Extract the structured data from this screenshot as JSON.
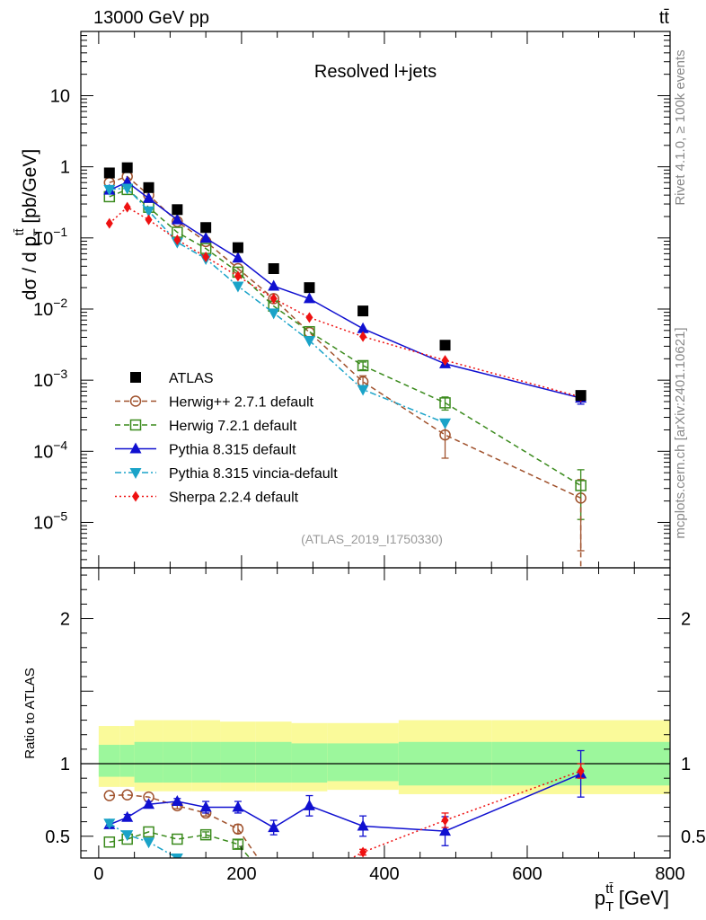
{
  "header": {
    "left": "13000 GeV pp",
    "right": "tt̄"
  },
  "side_labels": {
    "rivet": "Rivet 4.1.0, ≥ 100k events",
    "mcplots": "mcplots.cern.ch [arXiv:2401.10621]"
  },
  "chart_data": [
    {
      "panel": "main",
      "type": "line",
      "title": "Resolved l+jets",
      "analysis_id": "(ATLAS_2019_I1750330)",
      "ylabel_parts": [
        "dσ / d p",
        "T",
        "tt̄",
        " [pb/GeV]"
      ],
      "yscale": "log",
      "ylim": [
        2.3e-06,
        80
      ],
      "xlim": [
        -25,
        800
      ],
      "ytick_labels": [
        {
          "value": 10,
          "mant": "10",
          "exp": ""
        },
        {
          "value": 1,
          "mant": "1",
          "exp": ""
        },
        {
          "value": 0.1,
          "mant": "10",
          "exp": "−1"
        },
        {
          "value": 0.01,
          "mant": "10",
          "exp": "−2"
        },
        {
          "value": 0.001,
          "mant": "10",
          "exp": "−3"
        },
        {
          "value": 0.0001,
          "mant": "10",
          "exp": "−4"
        },
        {
          "value": 1e-05,
          "mant": "10",
          "exp": "−5"
        }
      ],
      "series": [
        {
          "name": "ATLAS",
          "style": "data",
          "color": "#000000",
          "x": [
            15,
            40,
            70,
            110,
            150,
            195,
            245,
            295,
            370,
            485,
            675
          ],
          "values": [
            0.82,
            0.97,
            0.51,
            0.25,
            0.14,
            0.073,
            0.037,
            0.02,
            0.0094,
            0.0031,
            0.00061
          ]
        },
        {
          "name": "Herwig++ 2.7.1 default",
          "style": "circle",
          "color": "#a0522d",
          "dash": "6,4",
          "x": [
            15,
            40,
            70,
            110,
            150,
            195,
            245,
            295,
            370,
            485,
            675
          ],
          "values": [
            0.6,
            0.73,
            0.4,
            0.17,
            0.089,
            0.037,
            0.014,
            0.0047,
            0.00095,
            0.00017,
            2.2e-05
          ],
          "errors": [
            0,
            0,
            0,
            0,
            0,
            0,
            0,
            0,
            0.0002,
            9e-05,
            1.8e-05
          ]
        },
        {
          "name": "Herwig 7.2.1 default",
          "style": "square",
          "color": "#3a8a1c",
          "dash": "6,4",
          "x": [
            15,
            40,
            70,
            110,
            150,
            195,
            245,
            295,
            370,
            485,
            675
          ],
          "values": [
            0.38,
            0.48,
            0.27,
            0.12,
            0.071,
            0.033,
            0.011,
            0.0048,
            0.0016,
            0.00048,
            3.3e-05
          ],
          "errors": [
            0,
            0,
            0,
            0,
            0,
            0,
            0,
            0,
            0.0002,
            0.0001,
            2.2e-05
          ]
        },
        {
          "name": "Pythia 8.315 default",
          "style": "triangle-up",
          "color": "#1010d0",
          "dash": "",
          "x": [
            15,
            40,
            70,
            110,
            150,
            195,
            245,
            295,
            370,
            485,
            675
          ],
          "values": [
            0.47,
            0.61,
            0.36,
            0.18,
            0.099,
            0.052,
            0.021,
            0.014,
            0.0053,
            0.0017,
            0.00056
          ],
          "errors": [
            0,
            0,
            0,
            0,
            0,
            0,
            0,
            0,
            0,
            0,
            0.0001
          ]
        },
        {
          "name": "Pythia 8.315 vincia-default",
          "style": "triangle-down",
          "color": "#1aa3c8",
          "dash": "7,3,2,3",
          "x": [
            15,
            40,
            70,
            110,
            150,
            195,
            245,
            295,
            370,
            485
          ],
          "values": [
            0.48,
            0.5,
            0.24,
            0.087,
            0.051,
            0.021,
            0.0088,
            0.0036,
            0.00074,
            0.00025
          ],
          "errors": [
            0,
            0,
            0,
            0,
            0,
            0,
            0,
            0,
            0,
            0
          ]
        },
        {
          "name": "Sherpa 2.2.4 default",
          "style": "diamond",
          "color": "#ee1111",
          "dash": "2,3",
          "x": [
            15,
            40,
            70,
            110,
            150,
            195,
            245,
            295,
            370,
            485,
            675
          ],
          "values": [
            0.16,
            0.27,
            0.18,
            0.094,
            0.054,
            0.029,
            0.014,
            0.0076,
            0.0041,
            0.0019,
            0.00058
          ],
          "errors": [
            0,
            0,
            0,
            0,
            0,
            0,
            0,
            0,
            0,
            0,
            0
          ]
        }
      ]
    },
    {
      "panel": "ratio",
      "type": "line",
      "ylabel": "Ratio to ATLAS",
      "xlabel_parts": [
        "p",
        "T",
        "tt̄",
        " [GeV]"
      ],
      "xlim": [
        -25,
        800
      ],
      "ylim": [
        0.35,
        2.35
      ],
      "xtick_labels": [
        "0",
        "200",
        "400",
        "600",
        "800"
      ],
      "ytick_labels": [
        "0.5",
        "1",
        "2"
      ],
      "bin_edges": [
        0,
        30,
        50,
        90,
        130,
        170,
        220,
        270,
        320,
        420,
        550,
        800
      ],
      "band_yellow": [
        [
          0.84,
          1.26
        ],
        [
          0.84,
          1.26
        ],
        [
          0.81,
          1.3
        ],
        [
          0.81,
          1.3
        ],
        [
          0.81,
          1.3
        ],
        [
          0.81,
          1.29
        ],
        [
          0.81,
          1.29
        ],
        [
          0.81,
          1.28
        ],
        [
          0.82,
          1.28
        ],
        [
          0.79,
          1.3
        ],
        [
          0.79,
          1.3
        ]
      ],
      "band_green": [
        [
          0.91,
          1.13
        ],
        [
          0.91,
          1.13
        ],
        [
          0.87,
          1.15
        ],
        [
          0.87,
          1.15
        ],
        [
          0.87,
          1.15
        ],
        [
          0.87,
          1.15
        ],
        [
          0.87,
          1.15
        ],
        [
          0.87,
          1.14
        ],
        [
          0.88,
          1.14
        ],
        [
          0.85,
          1.15
        ],
        [
          0.85,
          1.15
        ]
      ],
      "series": [
        {
          "name": "Herwig++ 2.7.1 default",
          "style": "circle",
          "color": "#a0522d",
          "dash": "6,4",
          "x": [
            15,
            40,
            70,
            110,
            150,
            195,
            230
          ],
          "values": [
            0.78,
            0.785,
            0.77,
            0.71,
            0.66,
            0.55,
            0.3
          ],
          "errors": [
            0,
            0,
            0,
            0.02,
            0.02,
            0.03,
            0
          ]
        },
        {
          "name": "Herwig 7.2.1 default",
          "style": "square",
          "color": "#3a8a1c",
          "dash": "6,4",
          "x": [
            15,
            40,
            70,
            110,
            150,
            195,
            220
          ],
          "values": [
            0.46,
            0.48,
            0.53,
            0.48,
            0.51,
            0.445,
            0.3
          ],
          "errors": [
            0,
            0,
            0,
            0,
            0.02,
            0.03,
            0
          ]
        },
        {
          "name": "Pythia 8.315 default",
          "style": "triangle-up",
          "color": "#1010d0",
          "dash": "",
          "x": [
            15,
            40,
            70,
            110,
            150,
            195,
            245,
            295,
            370,
            485,
            675
          ],
          "values": [
            0.58,
            0.63,
            0.72,
            0.74,
            0.7,
            0.7,
            0.56,
            0.71,
            0.57,
            0.535,
            0.93
          ],
          "errors": [
            0.02,
            0.02,
            0.02,
            0.02,
            0.04,
            0.04,
            0.05,
            0.07,
            0.07,
            0.1,
            0.16
          ]
        },
        {
          "name": "Pythia 8.315 vincia-default",
          "style": "triangle-down",
          "color": "#1aa3c8",
          "dash": "7,3,2,3",
          "x": [
            15,
            40,
            70,
            110,
            130
          ],
          "values": [
            0.59,
            0.51,
            0.46,
            0.35,
            0.3
          ],
          "errors": [
            0.02,
            0,
            0,
            0,
            0
          ]
        },
        {
          "name": "Sherpa 2.2.4 default",
          "style": "diamond",
          "color": "#ee1111",
          "dash": "2,3",
          "x": [
            335,
            370,
            485,
            675
          ],
          "values": [
            0.3,
            0.39,
            0.61,
            0.95
          ],
          "errors": [
            0,
            0.02,
            0.05,
            0.05
          ]
        }
      ]
    }
  ]
}
